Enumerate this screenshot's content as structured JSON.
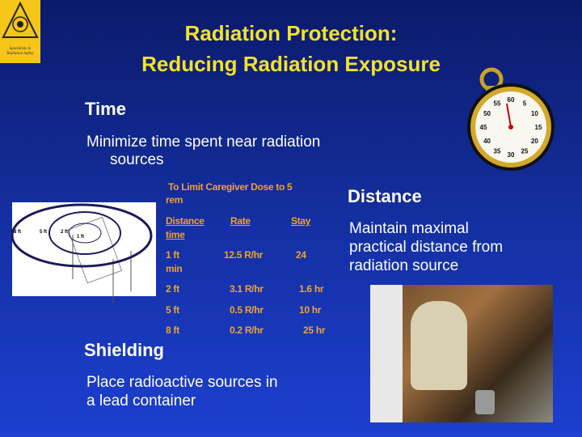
{
  "logo": {
    "ring_text": "HEALTH PHYSICS SOCIETY",
    "tagline": "Specialists in Radiation Safety"
  },
  "title": {
    "line1": "Radiation Protection:",
    "line2": "Reducing Radiation Exposure"
  },
  "time": {
    "heading": "Time",
    "text_line1": "Minimize time spent near radiation",
    "text_line2": "sources"
  },
  "table": {
    "caption_line1": "To Limit Caregiver Dose to 5",
    "caption_line2": "rem",
    "headers": [
      "Distance",
      "Rate",
      "Stay"
    ],
    "header_wrap": "time",
    "rows": [
      {
        "distance": "1 ft",
        "rate": "12.5 R/hr",
        "stay": "24",
        "stay_wrap": "min"
      },
      {
        "distance": "2 ft",
        "rate": "3.1 R/hr",
        "stay": "1.6 hr"
      },
      {
        "distance": "5 ft",
        "rate": "0.5 R/hr",
        "stay": "10 hr"
      },
      {
        "distance": "8 ft",
        "rate": "0.2 R/hr",
        "stay": "25 hr"
      }
    ]
  },
  "diagram": {
    "labels": [
      "8 ft",
      "5 ft",
      "2 ft",
      "1 ft"
    ]
  },
  "distance": {
    "heading": "Distance",
    "text_lines": [
      "Maintain maximal",
      "practical distance from",
      "radiation source"
    ]
  },
  "shielding": {
    "heading": "Shielding",
    "text_lines": [
      "Place radioactive sources in",
      "a lead container"
    ]
  },
  "stopwatch": {
    "numbers": [
      "60",
      "5",
      "10",
      "15",
      "20",
      "25",
      "30",
      "35",
      "40",
      "45",
      "50",
      "55"
    ]
  }
}
